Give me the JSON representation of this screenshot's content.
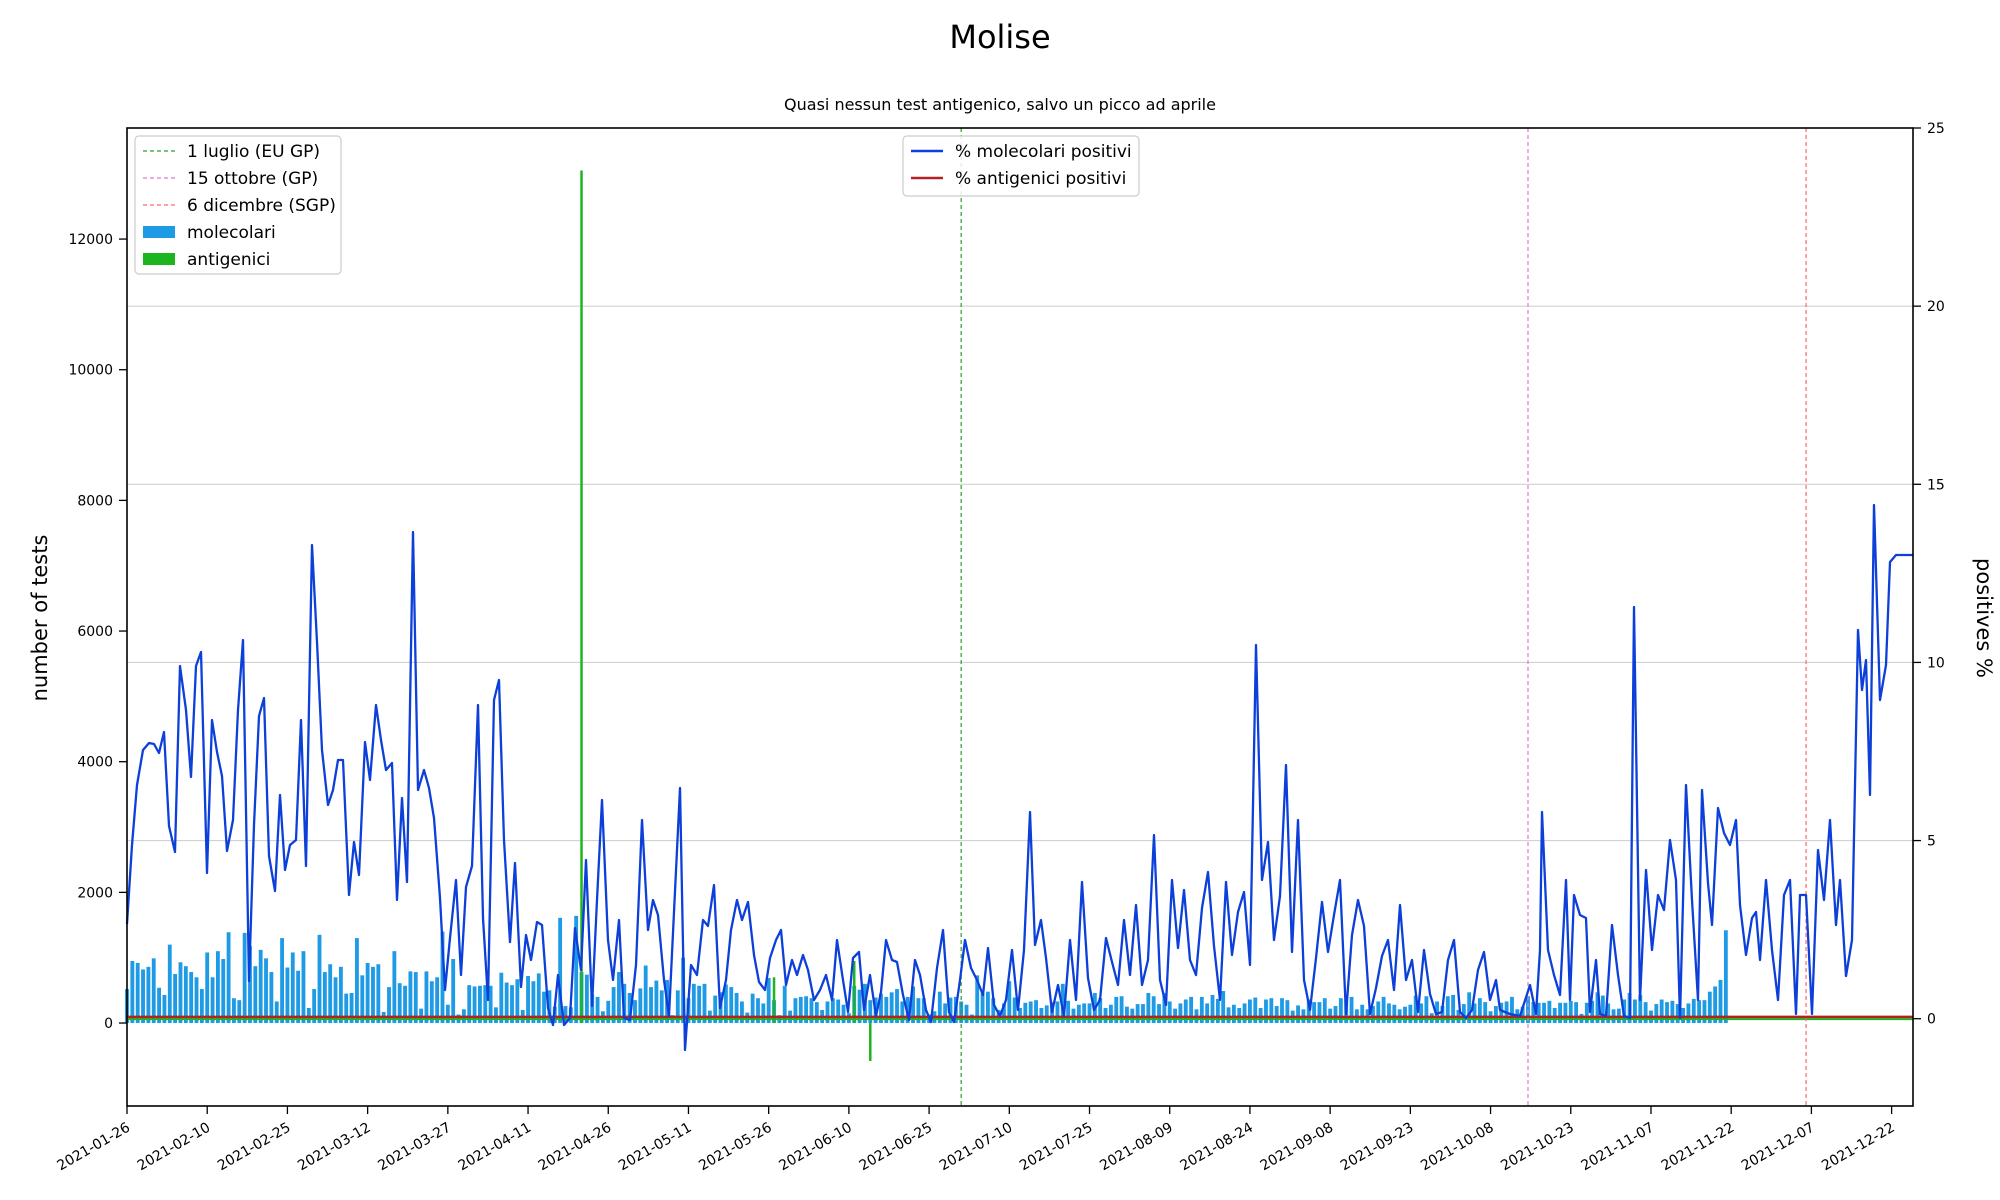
{
  "chart_data": {
    "type": "bar+line",
    "title": "Molise",
    "subtitle": "Quasi nessun test antigenico, salvo un picco ad aprile",
    "ylabel_left": "number of tests",
    "ylabel_right": "positives %",
    "y_left_lim": [
      -1270,
      13700
    ],
    "y_right_lim": [
      -2.45,
      25
    ],
    "y_left_ticks": [
      0,
      2000,
      4000,
      6000,
      8000,
      10000,
      12000
    ],
    "y_left_tick_labels": [
      "0",
      "2000",
      "4000",
      "6000",
      "8000",
      "10000",
      "12000"
    ],
    "y_right_ticks": [
      0,
      5,
      10,
      15,
      20,
      25
    ],
    "y_right_tick_labels": [
      "0",
      "5",
      "10",
      "15",
      "20",
      "25"
    ],
    "grid": "horizontal, right axis",
    "x_start": "2021-01-26",
    "x_end": "2021-12-26",
    "x_tick_labels": [
      "2021-01-26",
      "2021-02-10",
      "2021-02-25",
      "2021-03-12",
      "2021-03-27",
      "2021-04-11",
      "2021-04-26",
      "2021-05-11",
      "2021-05-26",
      "2021-06-10",
      "2021-06-25",
      "2021-07-10",
      "2021-07-25",
      "2021-08-09",
      "2021-08-24",
      "2021-09-08",
      "2021-09-23",
      "2021-10-08",
      "2021-10-23",
      "2021-11-07",
      "2021-11-22",
      "2021-12-07",
      "2021-12-22"
    ],
    "reference_lines": [
      {
        "label": "1 luglio (EU GP)",
        "date": "2021-07-01",
        "color": "#2ca02c"
      },
      {
        "label": "15 ottobre (GP)",
        "date": "2021-10-15",
        "color": "#e377c2"
      },
      {
        "label": "6 dicembre (SGP)",
        "date": "2021-12-06",
        "color": "#ff6666"
      }
    ],
    "legend_left": {
      "placement": "upper-left",
      "entries": [
        {
          "label": "1 luglio (EU GP)",
          "kind": "dashed",
          "color": "#2ca02c"
        },
        {
          "label": "15 ottobre (GP)",
          "kind": "dashed",
          "color": "#e377c2"
        },
        {
          "label": "6 dicembre (SGP)",
          "kind": "dashed",
          "color": "#ff6666"
        },
        {
          "label": "molecolari",
          "kind": "patch",
          "color": "#1f9be6"
        },
        {
          "label": "antigenici",
          "kind": "patch",
          "color": "#1db51d"
        }
      ]
    },
    "legend_right": {
      "placement": "upper-center",
      "entries": [
        {
          "label": "% molecolari positivi",
          "kind": "line",
          "color": "#0d3fd9"
        },
        {
          "label": "% antigenici positivi",
          "kind": "line",
          "color": "#b22222"
        }
      ]
    },
    "series_style": {
      "molecolari": "#1f9be6",
      "antigenici": "#1db51d",
      "pct_molecolari": "#0d3fd9",
      "pct_antigenici": "#b22222"
    },
    "antigenici_events": [
      {
        "date": "2021-04-21",
        "value": 13050
      },
      {
        "date": "2021-05-27",
        "value": 700
      },
      {
        "date": "2021-06-11",
        "value": 950
      },
      {
        "date": "2021-06-14",
        "value": -580
      }
    ],
    "antigenici_baseline": 60,
    "pct_antigenici_value": 0.05,
    "molecolari_values": [
      520,
      950,
      920,
      820,
      860,
      990,
      540,
      430,
      1200,
      750,
      930,
      870,
      780,
      700,
      520,
      1080,
      700,
      1100,
      980,
      1390,
      380,
      350,
      1380,
      1180,
      870,
      1120,
      990,
      780,
      330,
      1300,
      850,
      1080,
      800,
      1100,
      230,
      520,
      1350,
      780,
      900,
      700,
      860,
      450,
      460,
      1300,
      730,
      920,
      860,
      900,
      170,
      550,
      1100,
      610,
      570,
      790,
      780,
      220,
      790,
      640,
      700,
      1400,
      280,
      980,
      130,
      210,
      580,
      560,
      570,
      580,
      570,
      240,
      770,
      620,
      580,
      670,
      200,
      720,
      640,
      760,
      480,
      500,
      250,
      1610,
      260,
      240,
      1640,
      780,
      740,
      440,
      400,
      180,
      340,
      550,
      780,
      600,
      460,
      350,
      530,
      880,
      550,
      650,
      500,
      660,
      120,
      500,
      1000,
      380,
      600,
      570,
      600,
      190,
      420,
      470,
      590,
      550,
      460,
      330,
      160,
      450,
      380,
      300,
      690,
      350,
      120,
      570,
      190,
      380,
      400,
      410,
      380,
      320,
      200,
      330,
      380,
      360,
      280,
      150,
      570,
      510,
      600,
      350,
      390,
      450,
      400,
      470,
      520,
      330,
      400,
      560,
      380,
      380,
      130,
      180,
      480,
      300,
      390,
      400,
      330,
      280,
      130,
      730,
      460,
      480,
      380,
      200,
      300,
      640,
      390,
      230,
      310,
      330,
      350,
      230,
      270,
      320,
      330,
      600,
      340,
      220,
      280,
      300,
      300,
      460,
      380,
      230,
      280,
      400,
      410,
      250,
      220,
      290,
      290,
      460,
      410,
      290,
      460,
      330,
      220,
      300,
      360,
      400,
      210,
      400,
      300,
      430,
      370,
      490,
      240,
      280,
      230,
      300,
      360,
      390,
      230,
      360,
      380,
      260,
      380,
      350,
      190,
      270,
      210,
      360,
      320,
      320,
      380,
      220,
      260,
      380,
      350,
      400,
      210,
      280,
      210,
      260,
      330,
      400,
      300,
      280,
      210,
      250,
      280,
      420,
      300,
      410,
      150,
      330,
      260,
      410,
      430,
      200,
      290,
      470,
      300,
      380,
      320,
      180,
      260,
      310,
      330,
      400,
      210,
      250,
      410,
      320,
      310,
      310,
      340,
      230,
      310,
      310,
      340,
      320,
      140,
      310,
      340,
      470,
      420,
      300,
      210,
      220,
      360,
      460,
      360,
      430,
      320,
      190,
      290,
      360,
      320,
      340,
      290,
      230,
      300,
      370,
      350,
      350,
      480,
      560,
      660,
      1420
    ]
  }
}
